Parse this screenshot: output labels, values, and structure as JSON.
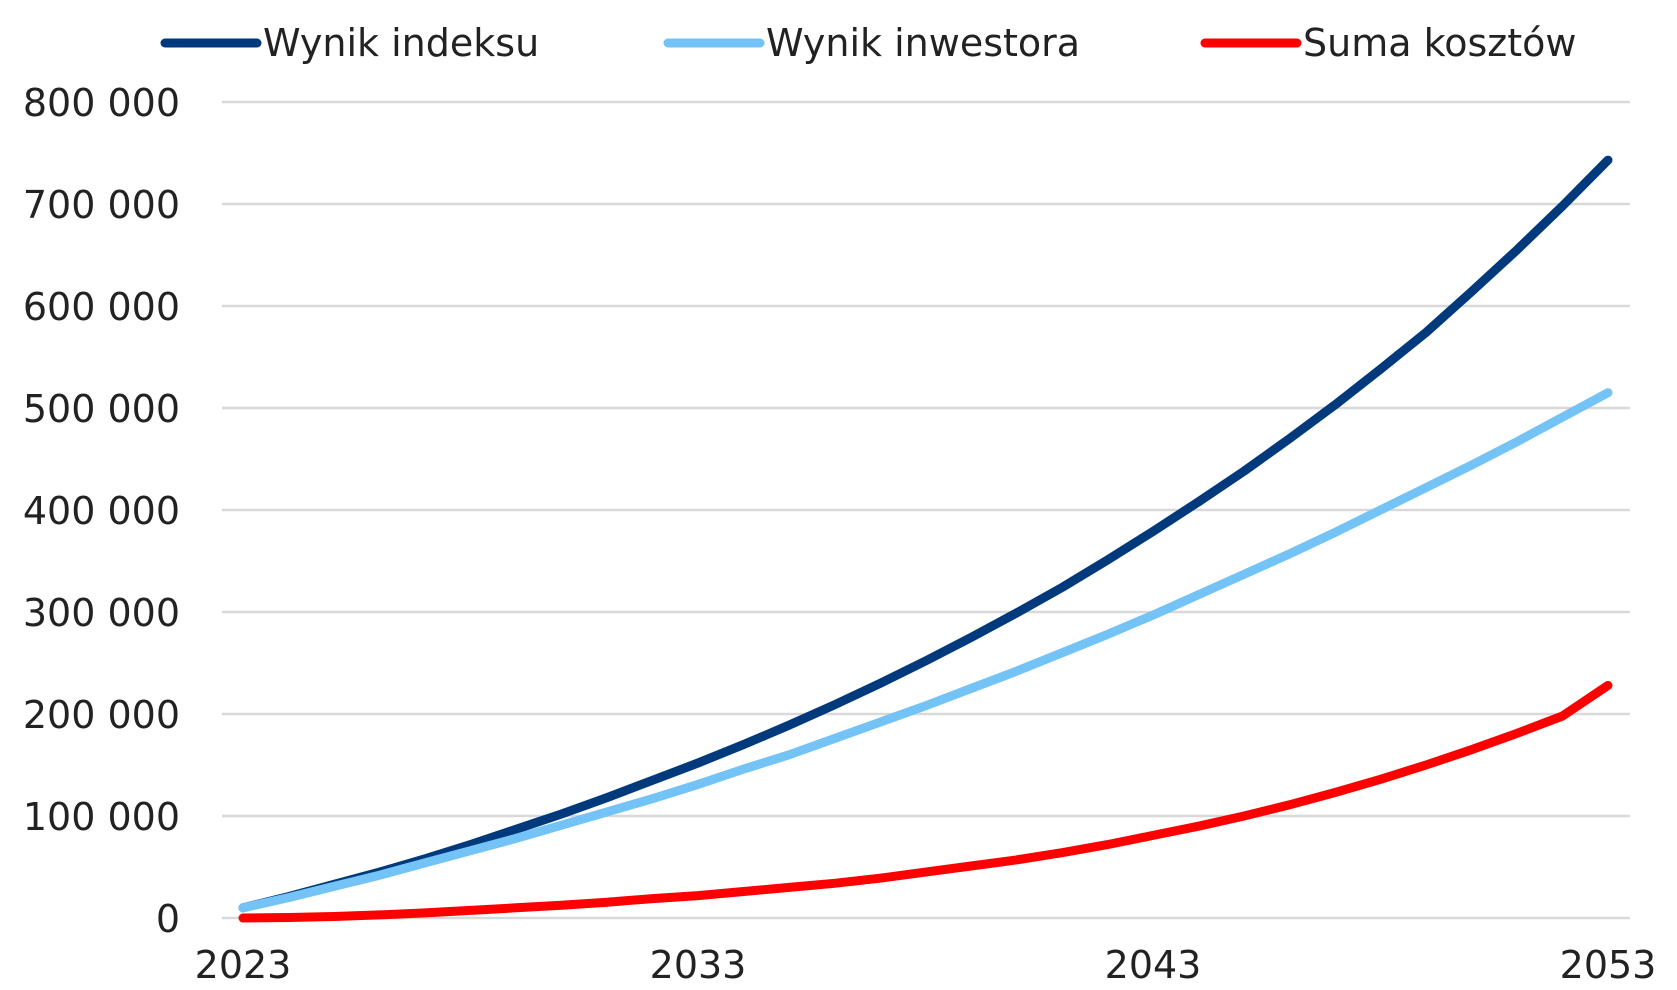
{
  "chart_data": {
    "type": "line",
    "title": "",
    "xlabel": "",
    "ylabel": "",
    "x": [
      2023,
      2024,
      2025,
      2026,
      2027,
      2028,
      2029,
      2030,
      2031,
      2032,
      2033,
      2034,
      2035,
      2036,
      2037,
      2038,
      2039,
      2040,
      2041,
      2042,
      2043,
      2044,
      2045,
      2046,
      2047,
      2048,
      2049,
      2050,
      2051,
      2052,
      2053
    ],
    "x_ticks": [
      "2023",
      "2033",
      "2043",
      "2053"
    ],
    "xlim": [
      2023,
      2053
    ],
    "ylim": [
      0,
      800000
    ],
    "y_ticks": [
      {
        "value": 0,
        "label": "0"
      },
      {
        "value": 100000,
        "label": "100 000"
      },
      {
        "value": 200000,
        "label": "200 000"
      },
      {
        "value": 300000,
        "label": "300 000"
      },
      {
        "value": 400000,
        "label": "400 000"
      },
      {
        "value": 500000,
        "label": "500 000"
      },
      {
        "value": 600000,
        "label": "600 000"
      },
      {
        "value": 700000,
        "label": "700 000"
      },
      {
        "value": 800000,
        "label": "800 000"
      }
    ],
    "grid": true,
    "legend_position": "top",
    "series": [
      {
        "name": "Wynik indeksu",
        "color": "#003a7d",
        "values": [
          10000,
          21000,
          33000,
          45000,
          58000,
          72000,
          87000,
          102000,
          118000,
          135000,
          152000,
          170000,
          189000,
          209000,
          230000,
          252000,
          275000,
          299000,
          324000,
          351000,
          379000,
          408000,
          438000,
          470000,
          503000,
          538000,
          574000,
          614000,
          655000,
          698000,
          743000
        ]
      },
      {
        "name": "Wynik inwestora",
        "color": "#74c3f7",
        "values": [
          10000,
          20000,
          31000,
          42000,
          54000,
          66000,
          78000,
          91000,
          104000,
          117000,
          131000,
          146000,
          160000,
          176000,
          192000,
          208000,
          225000,
          242000,
          260000,
          278000,
          297000,
          317000,
          337000,
          357000,
          378000,
          400000,
          422000,
          444000,
          467000,
          491000,
          515000
        ]
      },
      {
        "name": "Suma kosztów",
        "color": "#ff0000",
        "values": [
          0,
          500,
          1500,
          3000,
          5000,
          7500,
          10000,
          12500,
          15500,
          19000,
          22000,
          26000,
          30000,
          34000,
          39000,
          45000,
          51000,
          57000,
          64000,
          72000,
          81000,
          90000,
          100000,
          111000,
          123000,
          136000,
          150000,
          165000,
          181000,
          198000,
          228000
        ]
      }
    ]
  }
}
